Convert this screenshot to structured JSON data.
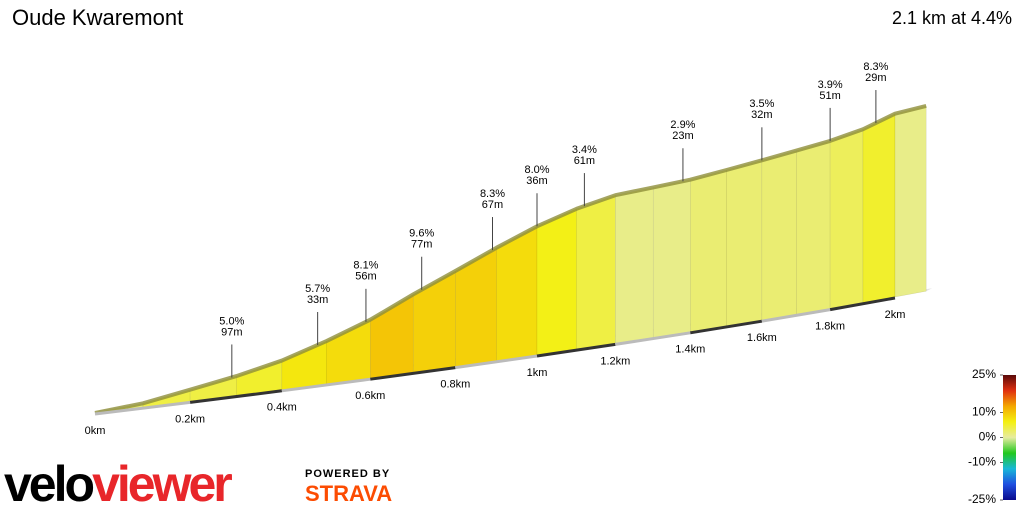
{
  "chart_data": {
    "type": "profile",
    "title": "Oude Kwaremont",
    "subtitle": "2.1 km at 4.4%",
    "x": [
      0,
      0.1,
      0.2,
      0.3,
      0.4,
      0.5,
      0.6,
      0.7,
      0.8,
      0.9,
      1.0,
      1.1,
      1.2,
      1.3,
      1.4,
      1.5,
      1.6,
      1.7,
      1.8,
      1.9,
      2.0,
      2.1
    ],
    "values": [
      0,
      2,
      6,
      10,
      15,
      22,
      30,
      40,
      49,
      58,
      66,
      72,
      76,
      77,
      78,
      80,
      82,
      84,
      86,
      89,
      94,
      95
    ],
    "xlim": [
      0,
      2.1
    ],
    "xticks": [
      {
        "value": 0,
        "label": "0km"
      },
      {
        "value": 0.2,
        "label": "0.2km"
      },
      {
        "value": 0.4,
        "label": "0.4km"
      },
      {
        "value": 0.6,
        "label": "0.6km"
      },
      {
        "value": 0.8,
        "label": "0.8km"
      },
      {
        "value": 1,
        "label": "1km"
      },
      {
        "value": 1.2,
        "label": "1.2km"
      },
      {
        "value": 1.4,
        "label": "1.4km"
      },
      {
        "value": 1.6,
        "label": "1.6km"
      },
      {
        "value": 1.8,
        "label": "1.8km"
      },
      {
        "value": 2,
        "label": "2km"
      }
    ],
    "annotations": {
      "x": [
        0.29,
        0.48,
        0.59,
        0.72,
        0.89,
        1.0,
        1.12,
        1.38,
        1.6,
        1.8,
        1.94
      ],
      "values": [
        5.0,
        5.7,
        8.1,
        9.6,
        8.3,
        8.0,
        3.4,
        2.9,
        3.5,
        3.9,
        8.3
      ],
      "value_labels": [
        "5.0%",
        "5.7%",
        "8.1%",
        "9.6%",
        "8.3%",
        "8.0%",
        "3.4%",
        "2.9%",
        "3.5%",
        "3.9%",
        "8.3%"
      ],
      "lengths": [
        97,
        33,
        56,
        77,
        67,
        36,
        61,
        23,
        32,
        51,
        29
      ],
      "length_labels": [
        "97m",
        "33m",
        "56m",
        "77m",
        "67m",
        "36m",
        "61m",
        "23m",
        "32m",
        "51m",
        "29m"
      ]
    },
    "colorbar": {
      "lim": [
        -25,
        25
      ],
      "ticks": [
        {
          "value": 25,
          "label": "25%"
        },
        {
          "value": 10,
          "label": "10%"
        },
        {
          "value": 0,
          "label": "0%"
        },
        {
          "value": -10,
          "label": "-10%"
        },
        {
          "value": -25,
          "label": "-25%"
        }
      ],
      "colors": [
        "#0a0a8c",
        "#1f4fe0",
        "#18b8d8",
        "#22c81e",
        "#e6eca0",
        "#f4f010",
        "#f4a800",
        "#e03010",
        "#5a0a0a"
      ]
    },
    "logo_prefix": "velo",
    "logo_suffix": "viewer",
    "powered": "POWERED BY",
    "strava": "STRAVA"
  }
}
